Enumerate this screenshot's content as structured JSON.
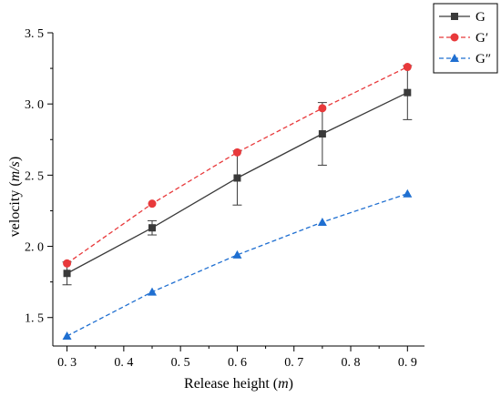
{
  "chart_data": {
    "type": "line",
    "xlabel": "Release height (m)",
    "ylabel": "velocity (m/s)",
    "xlim": [
      0.275,
      0.93
    ],
    "ylim": [
      1.3,
      3.5
    ],
    "x_ticks": [
      0.3,
      0.4,
      0.5,
      0.6,
      0.7,
      0.8,
      0.9
    ],
    "x_tick_labels": [
      "0. 3",
      "0. 4",
      "0. 5",
      "0. 6",
      "0. 7",
      "0. 8",
      "0. 9"
    ],
    "y_ticks": [
      1.5,
      2.0,
      2.5,
      3.0,
      3.5
    ],
    "y_tick_labels": [
      "1. 5",
      "2. 0",
      "2. 5",
      "3. 0",
      "3. 5"
    ],
    "legend_position": "top-right outside",
    "x": [
      0.3,
      0.45,
      0.6,
      0.75,
      0.9
    ],
    "series": [
      {
        "name": "G",
        "values": [
          1.81,
          2.13,
          2.48,
          2.79,
          3.08
        ],
        "error": [
          0.08,
          0.05,
          0.19,
          0.22,
          0.19
        ],
        "color": "#3a3a3a",
        "marker": "square",
        "line_style": "solid"
      },
      {
        "name": "G′",
        "values": [
          1.88,
          2.3,
          2.66,
          2.97,
          3.26
        ],
        "color": "#e8393b",
        "marker": "circle",
        "line_style": "dashed"
      },
      {
        "name": "G″",
        "values": [
          1.37,
          1.68,
          1.94,
          2.17,
          2.37
        ],
        "color": "#1f6fd1",
        "marker": "triangle",
        "line_style": "dashed"
      }
    ]
  }
}
